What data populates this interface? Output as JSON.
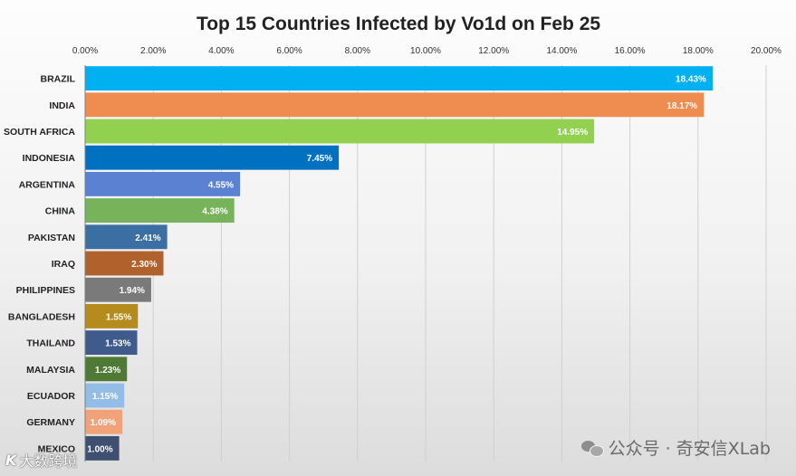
{
  "chart_data": {
    "type": "bar",
    "orientation": "horizontal",
    "title": "Top 15 Countries Infected by Vo1d on Feb 25",
    "categories": [
      "BRAZIL",
      "INDIA",
      "SOUTH AFRICA",
      "INDONESIA",
      "ARGENTINA",
      "CHINA",
      "PAKISTAN",
      "IRAQ",
      "PHILIPPINES",
      "BANGLADESH",
      "THAILAND",
      "MALAYSIA",
      "ECUADOR",
      "GERMANY",
      "MEXICO"
    ],
    "values": [
      18.43,
      18.17,
      14.95,
      7.45,
      4.55,
      4.38,
      2.41,
      2.3,
      1.94,
      1.55,
      1.53,
      1.23,
      1.15,
      1.09,
      1.0
    ],
    "value_labels": [
      "18.43%",
      "18.17%",
      "14.95%",
      "7.45%",
      "4.55%",
      "4.38%",
      "2.41%",
      "2.30%",
      "1.94%",
      "1.55%",
      "1.53%",
      "1.23%",
      "1.15%",
      "1.09%",
      "1.00%"
    ],
    "colors": [
      "#00b0f0",
      "#ef8c4f",
      "#92d050",
      "#0070c0",
      "#5b82d2",
      "#76b35a",
      "#3b6fa3",
      "#b0612c",
      "#7a7a7a",
      "#b68b1e",
      "#3e5b8c",
      "#4e7a36",
      "#93bde6",
      "#f2a278",
      "#3e4f70"
    ],
    "xlim": [
      0,
      20
    ],
    "x_ticks": [
      0,
      2,
      4,
      6,
      8,
      10,
      12,
      14,
      16,
      18,
      20
    ],
    "x_tick_labels": [
      "0.00%",
      "2.00%",
      "4.00%",
      "6.00%",
      "8.00%",
      "10.00%",
      "12.00%",
      "14.00%",
      "16.00%",
      "18.00%",
      "20.00%"
    ],
    "xlabel": "",
    "ylabel": "",
    "grid": true,
    "x_axis_position": "top",
    "legend": "none"
  },
  "watermarks": {
    "right_text": "公众号 · 奇安信XLab",
    "left_text": "大数跨境",
    "left_logo": "K"
  }
}
